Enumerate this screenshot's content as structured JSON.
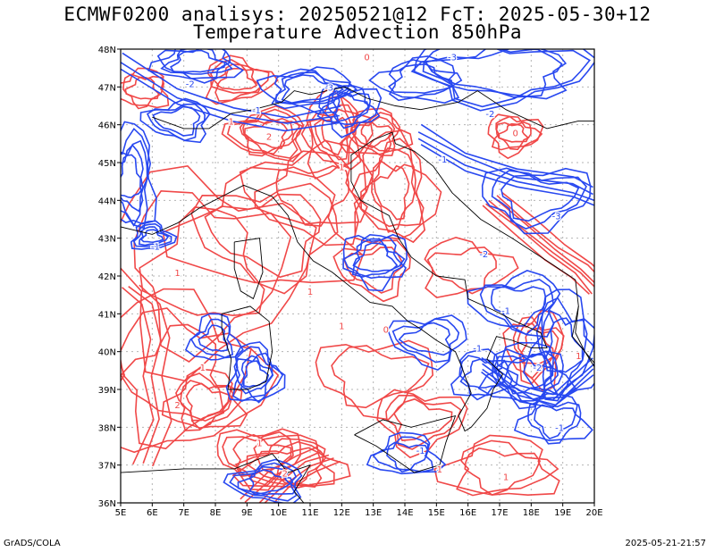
{
  "header": {
    "title_line1": "ECMWF0200 analisys: 20250521@12 FcT: 2025-05-30+12",
    "title_line2": "Temperature Advection 850hPa"
  },
  "map": {
    "lon_ticks": [
      "5E",
      "6E",
      "7E",
      "8E",
      "9E",
      "10E",
      "11E",
      "12E",
      "13E",
      "14E",
      "15E",
      "16E",
      "17E",
      "18E",
      "19E",
      "20E"
    ],
    "lat_ticks": [
      "48N",
      "47N",
      "46N",
      "45N",
      "44N",
      "43N",
      "42N",
      "41N",
      "40N",
      "39N",
      "38N",
      "37N",
      "36N"
    ],
    "lon_range": [
      5,
      20
    ],
    "lat_range": [
      36,
      48
    ],
    "colors": {
      "warm_advection": "#f04848",
      "cold_advection": "#2848f0",
      "coastline": "#000000",
      "grid": "#b4b4b4"
    },
    "contour_labels": [
      {
        "text": "-2",
        "lon": 7.2,
        "lat": 47.0,
        "kind": "cold"
      },
      {
        "text": "-1",
        "lon": 9.3,
        "lat": 46.3,
        "kind": "cold"
      },
      {
        "text": "-3",
        "lon": 11.6,
        "lat": 46.9,
        "kind": "cold"
      },
      {
        "text": "-1",
        "lon": 15.2,
        "lat": 45.0,
        "kind": "cold"
      },
      {
        "text": "-2",
        "lon": 16.7,
        "lat": 46.2,
        "kind": "cold"
      },
      {
        "text": "-3",
        "lon": 15.5,
        "lat": 47.7,
        "kind": "cold"
      },
      {
        "text": "-1",
        "lon": 6.1,
        "lat": 42.7,
        "kind": "cold"
      },
      {
        "text": "-2",
        "lon": 16.5,
        "lat": 42.5,
        "kind": "cold"
      },
      {
        "text": "-3",
        "lon": 18.8,
        "lat": 43.5,
        "kind": "cold"
      },
      {
        "text": "-1",
        "lon": 17.2,
        "lat": 41.0,
        "kind": "cold"
      },
      {
        "text": "-1",
        "lon": 16.3,
        "lat": 40.0,
        "kind": "cold"
      },
      {
        "text": "-2",
        "lon": 18.2,
        "lat": 39.5,
        "kind": "cold"
      },
      {
        "text": "-1",
        "lon": 14.5,
        "lat": 37.3,
        "kind": "cold"
      },
      {
        "text": "-1",
        "lon": 18.9,
        "lat": 37.9,
        "kind": "cold"
      },
      {
        "text": "1",
        "lon": 8.5,
        "lat": 46.0,
        "kind": "warm"
      },
      {
        "text": "2",
        "lon": 9.7,
        "lat": 45.6,
        "kind": "warm"
      },
      {
        "text": "0",
        "lon": 12.8,
        "lat": 47.7,
        "kind": "warm"
      },
      {
        "text": "1",
        "lon": 12.0,
        "lat": 44.8,
        "kind": "warm"
      },
      {
        "text": "1",
        "lon": 6.8,
        "lat": 42.0,
        "kind": "warm"
      },
      {
        "text": "1",
        "lon": 11.0,
        "lat": 41.5,
        "kind": "warm"
      },
      {
        "text": "0",
        "lon": 13.4,
        "lat": 40.5,
        "kind": "warm"
      },
      {
        "text": "1",
        "lon": 12.0,
        "lat": 40.6,
        "kind": "warm"
      },
      {
        "text": "1",
        "lon": 7.6,
        "lat": 39.5,
        "kind": "warm"
      },
      {
        "text": "2",
        "lon": 6.8,
        "lat": 38.5,
        "kind": "warm"
      },
      {
        "text": "1",
        "lon": 9.4,
        "lat": 37.5,
        "kind": "warm"
      },
      {
        "text": "2",
        "lon": 10.2,
        "lat": 36.7,
        "kind": "warm"
      },
      {
        "text": "1",
        "lon": 15.1,
        "lat": 36.8,
        "kind": "warm"
      },
      {
        "text": "1",
        "lon": 19.5,
        "lat": 39.8,
        "kind": "warm"
      },
      {
        "text": "1",
        "lon": 17.2,
        "lat": 36.6,
        "kind": "warm"
      },
      {
        "text": "0",
        "lon": 17.5,
        "lat": 45.7,
        "kind": "warm"
      }
    ]
  },
  "footer": {
    "left": "GrADS/COLA",
    "right": "2025-05-21-21:57"
  }
}
